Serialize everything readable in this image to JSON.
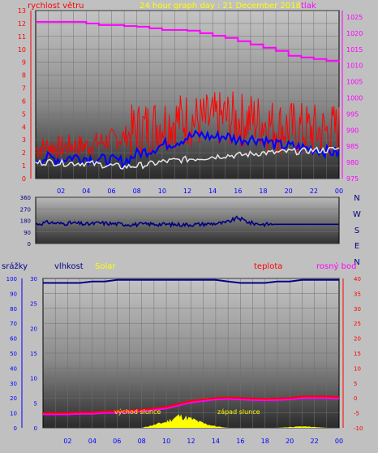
{
  "colors": {
    "bg": "#c0c0c0",
    "wind": "#ff0000",
    "pressure": "#ff00ff",
    "gust": "#0000ff",
    "dir_label": "#000080",
    "humidity": "#00008b",
    "solar": "#ffff00",
    "temp": "#ff0000",
    "dew": "#ff00ff",
    "tick_left": "#0000ff",
    "tick_dir": "#000080"
  },
  "top": {
    "title": "24 hour graph day : 21 December 2018",
    "wind_label": "rychlost větru",
    "pressure_label": "tlak",
    "wind_ticks": [
      "0",
      "1",
      "2",
      "3",
      "4",
      "5",
      "6",
      "7",
      "8",
      "9",
      "10",
      "11",
      "12",
      "13"
    ],
    "pressure_ticks": [
      "975",
      "980",
      "985",
      "990",
      "995",
      "1000",
      "1005",
      "1010",
      "1015",
      "1020",
      "1025"
    ],
    "x_ticks": [
      "02",
      "04",
      "06",
      "08",
      "10",
      "12",
      "14",
      "16",
      "18",
      "20",
      "22",
      "00"
    ]
  },
  "middle": {
    "dir_ticks": [
      "0",
      "90",
      "180",
      "270",
      "360"
    ],
    "compass": [
      "N",
      "W",
      "S",
      "E",
      "N"
    ]
  },
  "bottom": {
    "rain_label": "srážky",
    "humidity_label": "vlhkost",
    "solar_label": "Solar",
    "temp_label": "teplota",
    "dew_label": "rosný bod",
    "humidity_ticks": [
      "0",
      "10",
      "20",
      "30",
      "40",
      "50",
      "60",
      "70",
      "80",
      "90",
      "100"
    ],
    "rain_ticks": [
      "0",
      "5",
      "10",
      "15",
      "20",
      "25",
      "30"
    ],
    "temp_ticks": [
      "-10",
      "-5",
      "0",
      "5",
      "10",
      "15",
      "20",
      "25",
      "30",
      "35",
      "40"
    ],
    "sunrise_label": "východ slunce",
    "sunset_label": "západ slunce",
    "x_ticks": [
      "02",
      "04",
      "06",
      "08",
      "10",
      "12",
      "14",
      "16",
      "18",
      "20",
      "22",
      "00"
    ]
  },
  "chart_data": [
    {
      "type": "line",
      "title": "24 hour graph day : 21 December 2018",
      "x": [
        0,
        1,
        2,
        3,
        4,
        5,
        6,
        7,
        8,
        9,
        10,
        11,
        12,
        13,
        14,
        15,
        16,
        17,
        18,
        19,
        20,
        21,
        22,
        23,
        24
      ],
      "xlabel": "",
      "ylabel": "rychlost větru",
      "ylim": [
        0,
        13
      ],
      "y2label": "tlak",
      "y2lim": [
        975,
        1027
      ],
      "series": [
        {
          "name": "rychlost větru",
          "axis": "left",
          "values": [
            2.3,
            2.5,
            2.4,
            2.6,
            2.5,
            2.8,
            3.0,
            3.2,
            3.8,
            4.0,
            4.3,
            4.5,
            4.6,
            4.4,
            4.5,
            4.7,
            4.5,
            4.6,
            4.4,
            4.0,
            3.9,
            3.8,
            3.7,
            3.6,
            3.8
          ]
        },
        {
          "axis": "left",
          "values": [
            1.5,
            1.6,
            1.5,
            1.7,
            1.6,
            1.5,
            1.4,
            1.3,
            1.9,
            2.2,
            2.6,
            2.8,
            3.2,
            3.4,
            3.2,
            3.3,
            3.0,
            3.1,
            3.0,
            2.6,
            2.5,
            2.4,
            2.3,
            2.1,
            2.0
          ]
        },
        {
          "axis": "left",
          "values": [
            1.2,
            1.3,
            1.2,
            1.2,
            1.2,
            1.1,
            1.0,
            0.9,
            1.0,
            1.1,
            1.3,
            1.4,
            1.5,
            1.6,
            1.7,
            1.8,
            1.8,
            1.9,
            2.0,
            2.0,
            2.1,
            2.1,
            2.2,
            2.2,
            2.3
          ]
        },
        {
          "name": "tlak",
          "axis": "right",
          "values": [
            1023.5,
            1023.5,
            1023.5,
            1023.5,
            1023.0,
            1022.5,
            1022.5,
            1022.2,
            1022.0,
            1021.5,
            1021.0,
            1021.0,
            1020.8,
            1020.0,
            1019.2,
            1018.5,
            1017.5,
            1016.5,
            1015.5,
            1014.5,
            1013.0,
            1012.5,
            1012.0,
            1011.5,
            1011.0
          ]
        }
      ]
    },
    {
      "type": "line",
      "x": [
        0,
        1,
        2,
        3,
        4,
        5,
        6,
        7,
        8,
        9,
        10,
        11,
        12,
        13,
        14,
        15,
        16,
        17,
        18,
        19,
        20,
        21,
        22,
        23,
        24
      ],
      "ylim": [
        0,
        360
      ],
      "series": [
        {
          "values": [
            150,
            165,
            155,
            160,
            150,
            160,
            155,
            150,
            148,
            152,
            150,
            148,
            147,
            150,
            155,
            160,
            200,
            160,
            150,
            150,
            150,
            150,
            150,
            150,
            150
          ]
        }
      ]
    },
    {
      "type": "line",
      "x": [
        0,
        1,
        2,
        3,
        4,
        5,
        6,
        7,
        8,
        9,
        10,
        11,
        12,
        13,
        14,
        15,
        16,
        17,
        18,
        19,
        20,
        21,
        22,
        23,
        24
      ],
      "ylim": [
        0,
        100
      ],
      "y2lim": [
        -10,
        40
      ],
      "series": [
        {
          "name": "vlhkost",
          "axis": "left",
          "values": [
            97,
            97,
            97,
            97,
            98,
            98,
            99,
            99,
            99,
            99,
            99,
            99,
            99,
            99,
            99,
            98,
            97,
            97,
            97,
            98,
            98,
            99,
            99,
            99,
            99
          ]
        },
        {
          "name": "Solar",
          "axis": "left",
          "type": "area",
          "values": [
            0,
            0,
            0,
            0,
            0,
            0,
            0,
            0,
            0,
            2,
            4,
            8,
            6,
            3,
            1,
            0,
            0,
            0,
            0,
            0,
            0.5,
            1,
            0.5,
            0,
            0
          ]
        },
        {
          "name": "teplota",
          "axis": "right",
          "values": [
            -5.0,
            -5.0,
            -5.0,
            -4.8,
            -4.8,
            -4.5,
            -4.5,
            -4.2,
            -4.0,
            -3.5,
            -3.0,
            -2.0,
            -1.0,
            -0.5,
            0.0,
            0.2,
            0.0,
            -0.2,
            -0.3,
            -0.2,
            0.0,
            0.5,
            0.5,
            0.5,
            0.3
          ]
        },
        {
          "name": "rosný bod",
          "axis": "right",
          "values": [
            -5.5,
            -5.5,
            -5.5,
            -5.3,
            -5.3,
            -5.0,
            -5.0,
            -4.7,
            -4.5,
            -4.0,
            -3.5,
            -2.5,
            -1.5,
            -1.0,
            -0.5,
            -0.3,
            -0.5,
            -0.7,
            -0.8,
            -0.7,
            -0.5,
            0.0,
            0.0,
            0.0,
            -0.2
          ]
        }
      ]
    }
  ]
}
